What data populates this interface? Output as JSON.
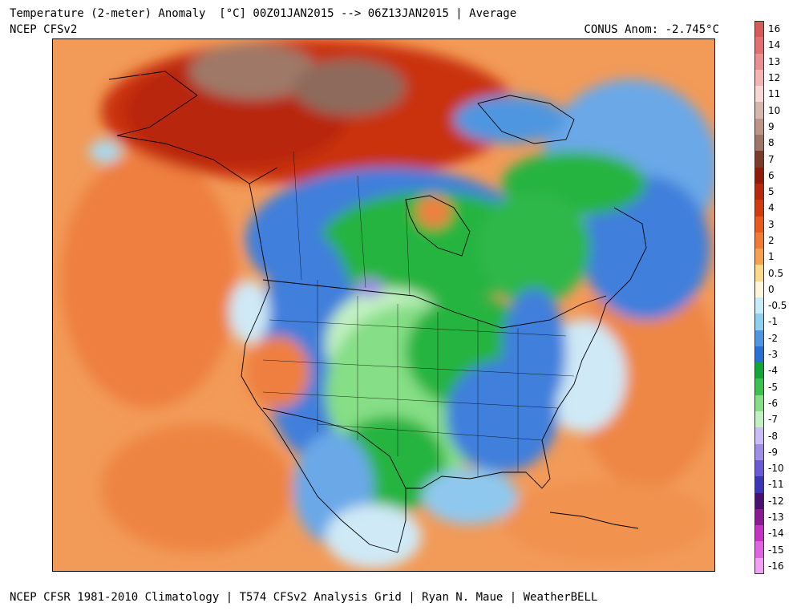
{
  "header": {
    "title": "Temperature (2-meter) Anomaly  [°C] 00Z01JAN2015 --> 06Z13JAN2015 | Average",
    "model": "NCEP CFSv2",
    "conus_anomaly": "CONUS Anom: -2.745°C"
  },
  "footer": {
    "credits": "NCEP CFSR 1981-2010 Climatology | T574 CFSv2 Analysis Grid | Ryan N. Maue | WeatherBELL"
  },
  "legend": {
    "unit": "°C",
    "levels": [
      {
        "label": "16",
        "color": "#d95a5a"
      },
      {
        "label": "14",
        "color": "#e27070"
      },
      {
        "label": "13",
        "color": "#eb9090"
      },
      {
        "label": "12",
        "color": "#f3b4b4"
      },
      {
        "label": "11",
        "color": "#f7d6d6"
      },
      {
        "label": "10",
        "color": "#d7b7ad"
      },
      {
        "label": "9",
        "color": "#bb9585"
      },
      {
        "label": "8",
        "color": "#9e7668"
      },
      {
        "label": "7",
        "color": "#7a3b2a"
      },
      {
        "label": "6",
        "color": "#8f1a0a"
      },
      {
        "label": "5",
        "color": "#b8260c"
      },
      {
        "label": "4",
        "color": "#d33a10"
      },
      {
        "label": "3",
        "color": "#e85a1c"
      },
      {
        "label": "2",
        "color": "#f27a35"
      },
      {
        "label": "1",
        "color": "#f7a050"
      },
      {
        "label": "0.5",
        "color": "#fcd98a"
      },
      {
        "label": "0",
        "color": "#fdf6dc"
      },
      {
        "label": "-0.5",
        "color": "#c8ecf7"
      },
      {
        "label": "-1",
        "color": "#8fd0ee"
      },
      {
        "label": "-2",
        "color": "#4f96e0"
      },
      {
        "label": "-3",
        "color": "#2a6fd6"
      },
      {
        "label": "-4",
        "color": "#12a53a"
      },
      {
        "label": "-5",
        "color": "#3cc14e"
      },
      {
        "label": "-6",
        "color": "#86de86"
      },
      {
        "label": "-7",
        "color": "#c2f0c2"
      },
      {
        "label": "-8",
        "color": "#cbbcf3"
      },
      {
        "label": "-9",
        "color": "#9f8ee6"
      },
      {
        "label": "-10",
        "color": "#6c5ad5"
      },
      {
        "label": "-11",
        "color": "#3a36b8"
      },
      {
        "label": "-12",
        "color": "#4a1070"
      },
      {
        "label": "-13",
        "color": "#8a1a92"
      },
      {
        "label": "-14",
        "color": "#c433c4"
      },
      {
        "label": "-15",
        "color": "#e064e0"
      },
      {
        "label": "-16",
        "color": "#f2a0f2"
      }
    ]
  },
  "map": {
    "region": "North America",
    "colors": {
      "ocean_warm": "#f29a58",
      "ocean_warmer": "#ee7f3f",
      "strong_warm": "#c9300e",
      "brown": "#9f7868",
      "blue": "#3f7fdc",
      "green": "#25b43f",
      "light_green": "#8fe08f",
      "light_blue": "#a8daf2"
    }
  }
}
